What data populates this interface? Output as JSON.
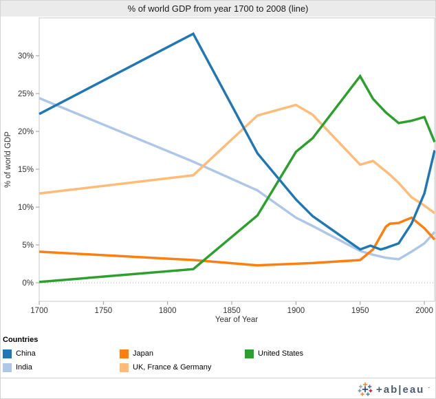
{
  "title": "% of world GDP from year 1700 to 2008 (line)",
  "chart_data": {
    "type": "line",
    "title": "% of world GDP from year 1700 to 2008 (line)",
    "xlabel": "Year of Year",
    "ylabel": "% of world GDP",
    "xlim": [
      1700,
      2008
    ],
    "ylim_percent": [
      -2.45,
      35
    ],
    "x_ticks": [
      1700,
      1750,
      1800,
      1850,
      1900,
      1950,
      2000
    ],
    "y_ticks": [
      {
        "value": 0,
        "label": "0%"
      },
      {
        "value": 5,
        "label": "5%"
      },
      {
        "value": 10,
        "label": "10%"
      },
      {
        "value": 15,
        "label": "15%"
      },
      {
        "value": 20,
        "label": "20%"
      },
      {
        "value": 25,
        "label": "25%"
      },
      {
        "value": 30,
        "label": "30%"
      }
    ],
    "grid": "dotted zero line only, no other gridlines, legend below plot",
    "legend_title": "Countries",
    "series": [
      {
        "name": "India",
        "color": "#AEC7E8",
        "points": [
          [
            1700,
            24.4
          ],
          [
            1820,
            16.0
          ],
          [
            1870,
            12.2
          ],
          [
            1900,
            8.6
          ],
          [
            1913,
            7.5
          ],
          [
            1950,
            4.2
          ],
          [
            1960,
            3.7
          ],
          [
            1970,
            3.3
          ],
          [
            1980,
            3.1
          ],
          [
            1990,
            4.1
          ],
          [
            2000,
            5.2
          ],
          [
            2008,
            6.7
          ]
        ]
      },
      {
        "name": "UK, France & Germany",
        "color": "#FFBB78",
        "points": [
          [
            1700,
            11.8
          ],
          [
            1820,
            14.2
          ],
          [
            1870,
            22.1
          ],
          [
            1900,
            23.5
          ],
          [
            1913,
            22.2
          ],
          [
            1950,
            15.6
          ],
          [
            1960,
            16.1
          ],
          [
            1973,
            14.3
          ],
          [
            1980,
            13.2
          ],
          [
            1990,
            11.3
          ],
          [
            2000,
            10.2
          ],
          [
            2008,
            9.2
          ]
        ]
      },
      {
        "name": "Japan",
        "color": "#FF7F0E",
        "points": [
          [
            1700,
            4.1
          ],
          [
            1820,
            3.0
          ],
          [
            1870,
            2.3
          ],
          [
            1913,
            2.6
          ],
          [
            1950,
            3.0
          ],
          [
            1960,
            4.4
          ],
          [
            1970,
            7.4
          ],
          [
            1973,
            7.8
          ],
          [
            1980,
            7.9
          ],
          [
            1990,
            8.6
          ],
          [
            2000,
            7.2
          ],
          [
            2008,
            5.7
          ]
        ]
      },
      {
        "name": "United States",
        "color": "#2CA02C",
        "points": [
          [
            1700,
            0.1
          ],
          [
            1820,
            1.8
          ],
          [
            1870,
            8.9
          ],
          [
            1900,
            17.3
          ],
          [
            1913,
            19.1
          ],
          [
            1950,
            27.3
          ],
          [
            1960,
            24.3
          ],
          [
            1970,
            22.5
          ],
          [
            1980,
            21.1
          ],
          [
            1990,
            21.4
          ],
          [
            2000,
            21.9
          ],
          [
            2008,
            18.6
          ]
        ]
      },
      {
        "name": "China",
        "color": "#1F77B4",
        "points": [
          [
            1700,
            22.3
          ],
          [
            1820,
            32.9
          ],
          [
            1870,
            17.1
          ],
          [
            1900,
            11.0
          ],
          [
            1913,
            8.8
          ],
          [
            1950,
            4.4
          ],
          [
            1958,
            4.9
          ],
          [
            1966,
            4.4
          ],
          [
            1970,
            4.6
          ],
          [
            1980,
            5.2
          ],
          [
            1990,
            7.8
          ],
          [
            2000,
            11.8
          ],
          [
            2008,
            17.5
          ]
        ]
      }
    ]
  },
  "legend": {
    "title": "Countries",
    "items": [
      {
        "label": "China",
        "color": "#1F77B4"
      },
      {
        "label": "India",
        "color": "#AEC7E8"
      },
      {
        "label": "Japan",
        "color": "#FF7F0E"
      },
      {
        "label": "UK, France & Germany",
        "color": "#FFBB78"
      },
      {
        "label": "United States",
        "color": "#2CA02C"
      }
    ]
  },
  "footer": {
    "brand_wordmark": "+ab|eau",
    "brand_name": "tableau",
    "sparkle_colors": [
      "#EB912C",
      "#9BA8B3",
      "#5B6591",
      "#1F447E",
      "#7099A6",
      "#C72037",
      "#EB912C",
      "#59879B"
    ]
  },
  "colors": {
    "title_bar_bg": "#EBEBEB",
    "plot_border": "#C9C9C9",
    "tick": "#999999",
    "zero_line": "#ABABAB",
    "axis_text": "#333333"
  }
}
